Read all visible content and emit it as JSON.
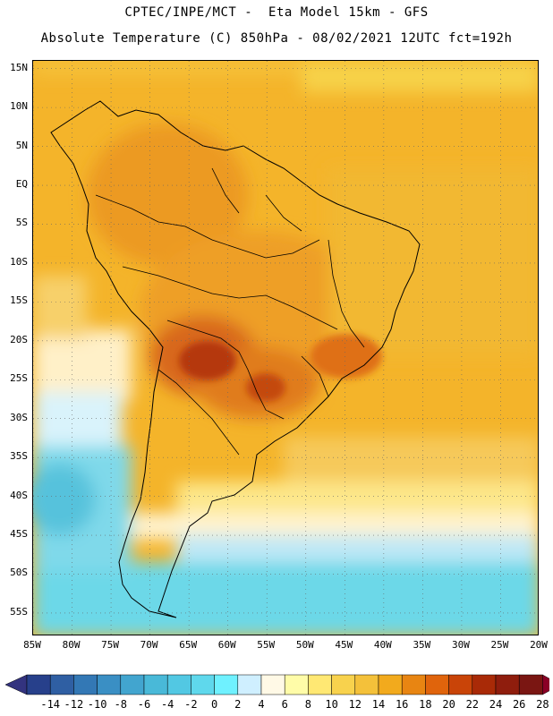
{
  "header": {
    "line1": "CPTEC/INPE/MCT -  Eta Model 15km - GFS",
    "line2": "Absolute Temperature (C) 850hPa - 08/02/2021 12UTC fct=192h"
  },
  "map": {
    "lat_labels": [
      "15N",
      "10N",
      "5N",
      "EQ",
      "5S",
      "10S",
      "15S",
      "20S",
      "25S",
      "30S",
      "35S",
      "40S",
      "45S",
      "50S",
      "55S"
    ],
    "lon_labels": [
      "85W",
      "80W",
      "75W",
      "70W",
      "65W",
      "60W",
      "55W",
      "50W",
      "45W",
      "40W",
      "35W",
      "30W",
      "25W",
      "20W"
    ],
    "extent": {
      "lon_min": -85,
      "lon_max": -20,
      "lat_min": -58,
      "lat_max": 16
    },
    "grid": "dotted",
    "coastline_color": "#000000"
  },
  "colorbar": {
    "labels": [
      "-14",
      "-12",
      "-10",
      "-8",
      "-6",
      "-4",
      "-2",
      "0",
      "2",
      "4",
      "6",
      "8",
      "10",
      "12",
      "14",
      "16",
      "18",
      "20",
      "22",
      "24",
      "26",
      "28"
    ],
    "under_color": "#33337f",
    "over_color": "#8b0026",
    "colors": [
      "#27408b",
      "#2f5fa3",
      "#3378b5",
      "#3a8fc4",
      "#42a5cf",
      "#49b9d8",
      "#52c8e3",
      "#5fd8ec",
      "#6ff1ff",
      "#cfefff",
      "#fff9e6",
      "#fffca8",
      "#ffe873",
      "#f8d24d",
      "#f4c13a",
      "#f2aa1d",
      "#e88512",
      "#e0640c",
      "#c94408",
      "#a92a07",
      "#8f1d0d",
      "#7a1612"
    ]
  }
}
